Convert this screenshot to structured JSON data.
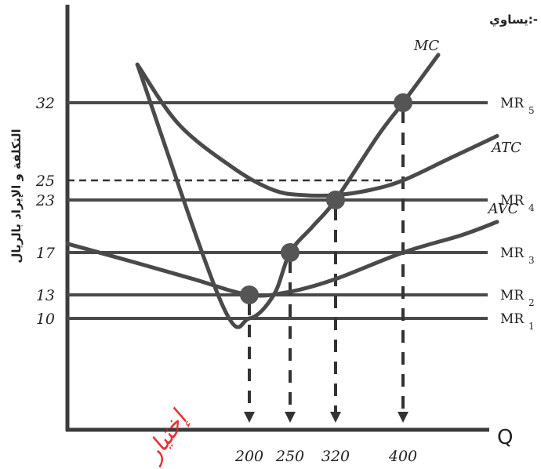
{
  "chart_data": {
    "type": "line",
    "title": "يساوي:-",
    "xlabel": "Q",
    "ylabel": "التكلفة و الإيراد بالريال",
    "x_ticks": [
      "200",
      "250",
      "320",
      "400"
    ],
    "y_ticks": [
      "10",
      "13",
      "17",
      "23",
      "25",
      "32"
    ],
    "horizontal_lines": [
      {
        "name": "MR5",
        "main": "MR",
        "sub": "5",
        "y": 32
      },
      {
        "name": "MR4",
        "main": "MR",
        "sub": "4",
        "y": 23
      },
      {
        "name": "MR3",
        "main": "MR",
        "sub": "3",
        "y": 17
      },
      {
        "name": "MR2",
        "main": "MR",
        "sub": "2",
        "y": 13
      },
      {
        "name": "MR1",
        "main": "MR",
        "sub": "1",
        "y": 10
      }
    ],
    "series": [
      {
        "name": "MC",
        "points": [
          [
            120,
            36
          ],
          [
            180,
            12
          ],
          [
            200,
            10
          ],
          [
            230,
            13
          ],
          [
            250,
            17
          ],
          [
            285,
            20
          ],
          [
            320,
            23
          ],
          [
            370,
            29
          ],
          [
            400,
            32
          ],
          [
            430,
            37
          ]
        ]
      },
      {
        "name": "ATC",
        "points": [
          [
            120,
            36
          ],
          [
            150,
            30
          ],
          [
            190,
            26
          ],
          [
            230,
            24
          ],
          [
            270,
            23.5
          ],
          [
            320,
            23.5
          ],
          [
            360,
            24
          ],
          [
            400,
            25
          ],
          [
            440,
            27
          ],
          [
            480,
            29
          ]
        ]
      },
      {
        "name": "AVC",
        "points": [
          [
            70,
            18
          ],
          [
            120,
            16
          ],
          [
            160,
            14.5
          ],
          [
            200,
            13
          ],
          [
            250,
            13.3
          ],
          [
            320,
            14.5
          ],
          [
            400,
            17
          ],
          [
            450,
            19
          ],
          [
            480,
            20.5
          ]
        ]
      }
    ],
    "dashed_guides": [
      {
        "x": 200,
        "y": 13
      },
      {
        "x": 250,
        "y": 17
      },
      {
        "x": 320,
        "y": 23
      },
      {
        "x": 400,
        "y": 32
      },
      {
        "x": 400,
        "y": 25,
        "horizontal": true
      }
    ],
    "points": [
      {
        "x": 200,
        "y": 13
      },
      {
        "x": 250,
        "y": 17
      },
      {
        "x": 320,
        "y": 23
      },
      {
        "x": 400,
        "y": 32
      }
    ],
    "annotation": "إختيار",
    "annotation_color": "#e02020",
    "line_color": "#4a4a4a"
  }
}
